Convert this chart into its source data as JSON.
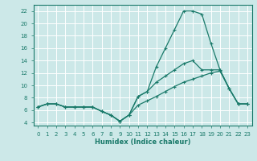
{
  "xlabel": "Humidex (Indice chaleur)",
  "background_color": "#cce8e8",
  "grid_color": "#ffffff",
  "line_color": "#1a7a6a",
  "xlim": [
    -0.5,
    23.5
  ],
  "ylim": [
    3.5,
    23.0
  ],
  "xticks": [
    0,
    1,
    2,
    3,
    4,
    5,
    6,
    7,
    8,
    9,
    10,
    11,
    12,
    13,
    14,
    15,
    16,
    17,
    18,
    19,
    20,
    21,
    22,
    23
  ],
  "yticks": [
    4,
    6,
    8,
    10,
    12,
    14,
    16,
    18,
    20,
    22
  ],
  "line1_x": [
    0,
    1,
    2,
    3,
    4,
    5,
    6,
    7,
    8,
    9,
    10,
    11,
    12,
    13,
    14,
    15,
    16,
    17,
    18,
    19,
    20,
    21,
    22,
    23
  ],
  "line1_y": [
    6.5,
    7.0,
    7.0,
    6.5,
    6.5,
    6.5,
    6.5,
    5.8,
    5.2,
    4.2,
    5.2,
    8.2,
    9.0,
    13.0,
    16.0,
    19.0,
    22.0,
    22.0,
    21.5,
    16.8,
    12.5,
    9.5,
    7.0,
    7.0
  ],
  "line2_x": [
    0,
    1,
    2,
    3,
    4,
    5,
    6,
    7,
    8,
    9,
    10,
    11,
    12,
    13,
    14,
    15,
    16,
    17,
    18,
    19,
    20,
    21,
    22,
    23
  ],
  "line2_y": [
    6.5,
    7.0,
    7.0,
    6.5,
    6.5,
    6.5,
    6.5,
    5.8,
    5.2,
    4.2,
    5.2,
    8.2,
    9.0,
    10.5,
    11.5,
    12.5,
    13.5,
    14.0,
    12.5,
    12.5,
    12.5,
    9.5,
    7.0,
    7.0
  ],
  "line3_x": [
    0,
    1,
    2,
    3,
    4,
    5,
    6,
    7,
    8,
    9,
    10,
    11,
    12,
    13,
    14,
    15,
    16,
    17,
    18,
    19,
    20,
    21,
    22,
    23
  ],
  "line3_y": [
    6.5,
    7.0,
    7.0,
    6.5,
    6.5,
    6.5,
    6.5,
    5.8,
    5.2,
    4.2,
    5.2,
    6.8,
    7.5,
    8.2,
    9.0,
    9.8,
    10.5,
    11.0,
    11.5,
    12.0,
    12.3,
    9.5,
    7.0,
    7.0
  ]
}
